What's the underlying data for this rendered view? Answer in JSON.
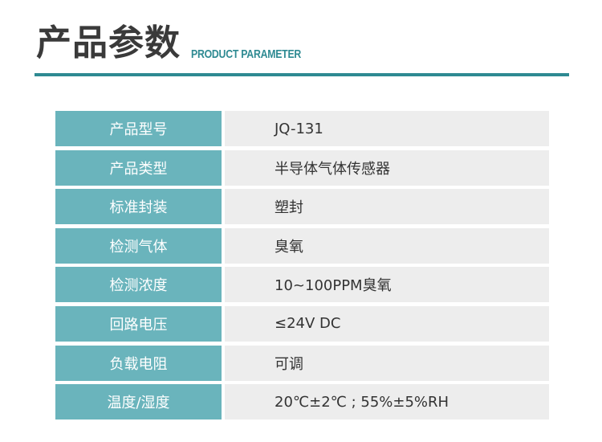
{
  "header": {
    "title": "产品参数",
    "subtitle": "PRODUCT PARAMETER",
    "accent": "#2e8a92"
  },
  "params": [
    {
      "label": "产品型号",
      "value": "JQ-131"
    },
    {
      "label": "产品类型",
      "value": "半导体气体传感器"
    },
    {
      "label": "标准封装",
      "value": "塑封"
    },
    {
      "label": "检测气体",
      "value": "臭氧"
    },
    {
      "label": "检测浓度",
      "value": "10~100PPM臭氧"
    },
    {
      "label": "回路电压",
      "value": "≤24V DC"
    },
    {
      "label": "负载电阻",
      "value": "可调"
    },
    {
      "label": "温度/湿度",
      "value": "20℃±2℃ ; 55%±5%RH"
    }
  ]
}
